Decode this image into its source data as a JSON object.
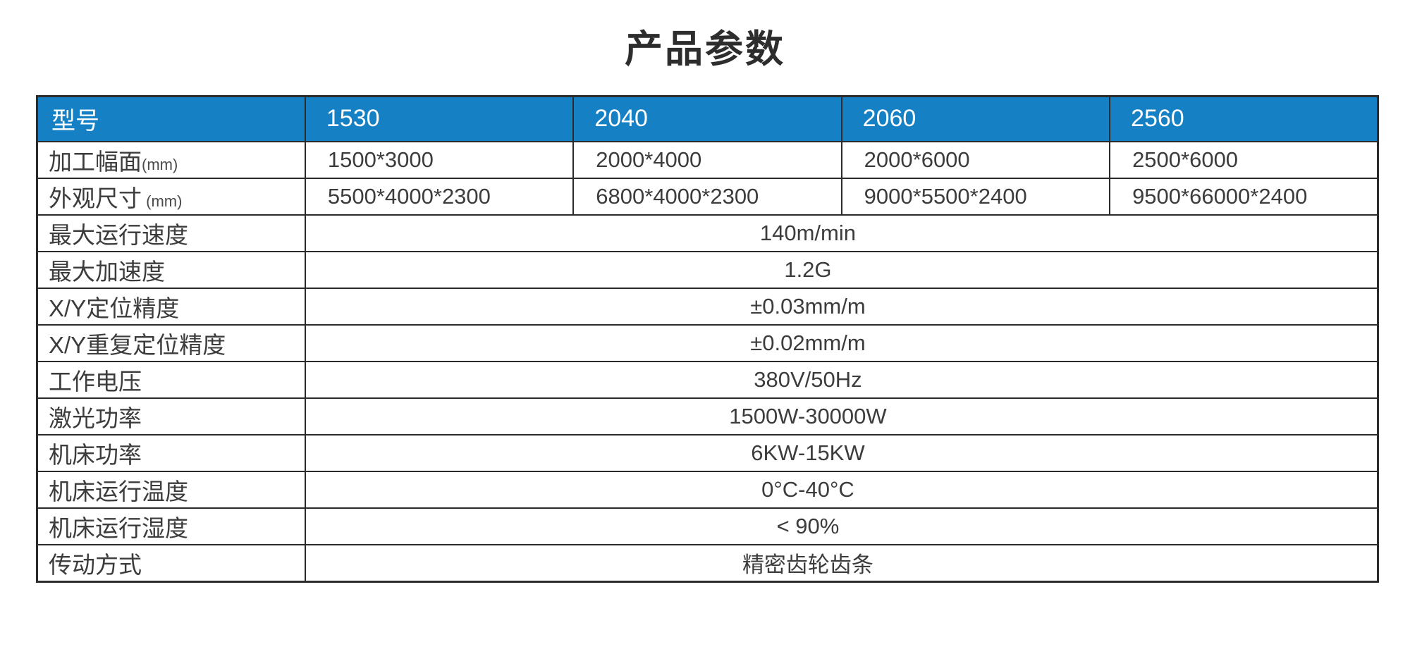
{
  "page": {
    "title": "产品参数"
  },
  "colors": {
    "header_bg": "#1580C4",
    "header_text": "#ffffff",
    "border": "#2b2b2b",
    "body_text": "#3c3c3c",
    "title_text": "#2d2d2d"
  },
  "table": {
    "header": {
      "cells": [
        "型号",
        "1530",
        "2040",
        "2060",
        "2560"
      ]
    },
    "grid_rows": [
      {
        "label": "加工幅面",
        "label_suffix": "(mm)",
        "values": [
          "1500*3000",
          "2000*4000",
          "2000*6000",
          "2500*6000"
        ]
      },
      {
        "label": "外观尺寸",
        "label_suffix": " (mm)",
        "values": [
          "5500*4000*2300",
          "6800*4000*2300",
          "9000*5500*2400",
          "9500*66000*2400"
        ]
      }
    ],
    "merged_rows": [
      {
        "label": "最大运行速度",
        "value": "140m/min"
      },
      {
        "label": "最大加速度",
        "value": "1.2G"
      },
      {
        "label": "X/Y定位精度",
        "value": "±0.03mm/m"
      },
      {
        "label": "X/Y重复定位精度",
        "value": "±0.02mm/m"
      },
      {
        "label": "工作电压",
        "value": "380V/50Hz"
      },
      {
        "label": "激光功率",
        "value": "1500W-30000W"
      },
      {
        "label": "机床功率",
        "value": "6KW-15KW"
      },
      {
        "label": "机床运行温度",
        "value": "0°C-40°C"
      },
      {
        "label": "机床运行湿度",
        "value": "< 90%"
      },
      {
        "label": "传动方式",
        "value": "精密齿轮齿条"
      }
    ]
  }
}
